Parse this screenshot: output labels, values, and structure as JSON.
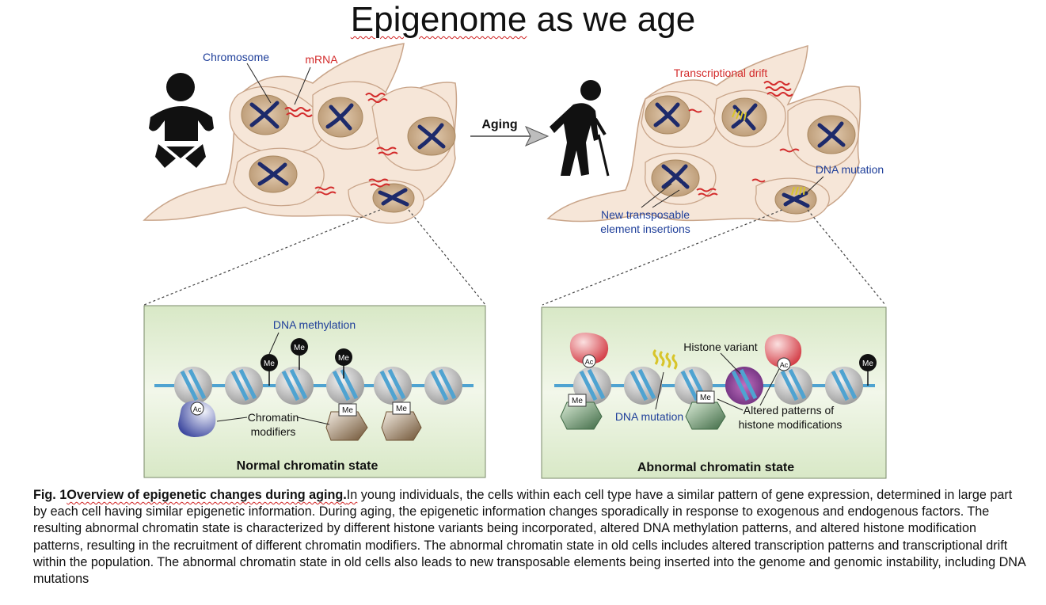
{
  "title": {
    "part1": "Epigenome",
    "part2": " as we age"
  },
  "young_panel": {
    "labels": {
      "chromosome": "Chromosome",
      "mrna": "mRNA"
    }
  },
  "arrow": {
    "label": "Aging"
  },
  "old_panel": {
    "labels": {
      "transcriptional_drift": "Transcriptional drift",
      "dna_mutation": "DNA mutation",
      "transposable_line1": "New transposable",
      "transposable_line2": "element insertions"
    }
  },
  "normal_box": {
    "dna_methylation": "DNA methylation",
    "me": "Me",
    "ac": "Ac",
    "chromatin_modifiers_line1": "Chromatin",
    "chromatin_modifiers_line2": "modifiers",
    "caption": "Normal chromatin state"
  },
  "abnormal_box": {
    "histone_variant": "Histone variant",
    "dna_mutation": "DNA mutation",
    "altered_line1": "Altered patterns of",
    "altered_line2": "histone modifications",
    "me": "Me",
    "ac": "Ac",
    "caption": "Abnormal chromatin state"
  },
  "figure_caption": {
    "lead_a": "Fig. 1",
    "lead_b": "Overview of epigenetic changes during aging.",
    "in_word": "In",
    "body": " young individuals, the cells within each cell type have a similar pattern of gene expression, determined in large part by each cell having similar epigenetic information. During aging, the epigenetic information changes sporadically in response to exogenous and endogenous factors. The resulting abnormal chromatin state is characterized by different histone variants being incorporated, altered DNA methylation patterns, and altered histone modification patterns, resulting in the recruitment of different chromatin modifiers. The abnormal chromatin state in old cells includes altered transcription patterns and transcriptional drift within the population. The abnormal chromatin state in old cells also leads to new transposable elements being inserted into the genome and genomic instability, including DNA mutations"
  },
  "colors": {
    "cell_fill": "#f6e6d8",
    "cell_stroke": "#c9a58a",
    "nucleus": "#c9ab88",
    "chromosome": "#1d2a6b",
    "mrna": "#d32b2b",
    "label_blue": "#1f3f9a",
    "label_red": "#d32b2b",
    "box_fill": "#e8f1dc",
    "box_stroke": "#7a8a6a",
    "dna_line": "#4fa3d1"
  }
}
